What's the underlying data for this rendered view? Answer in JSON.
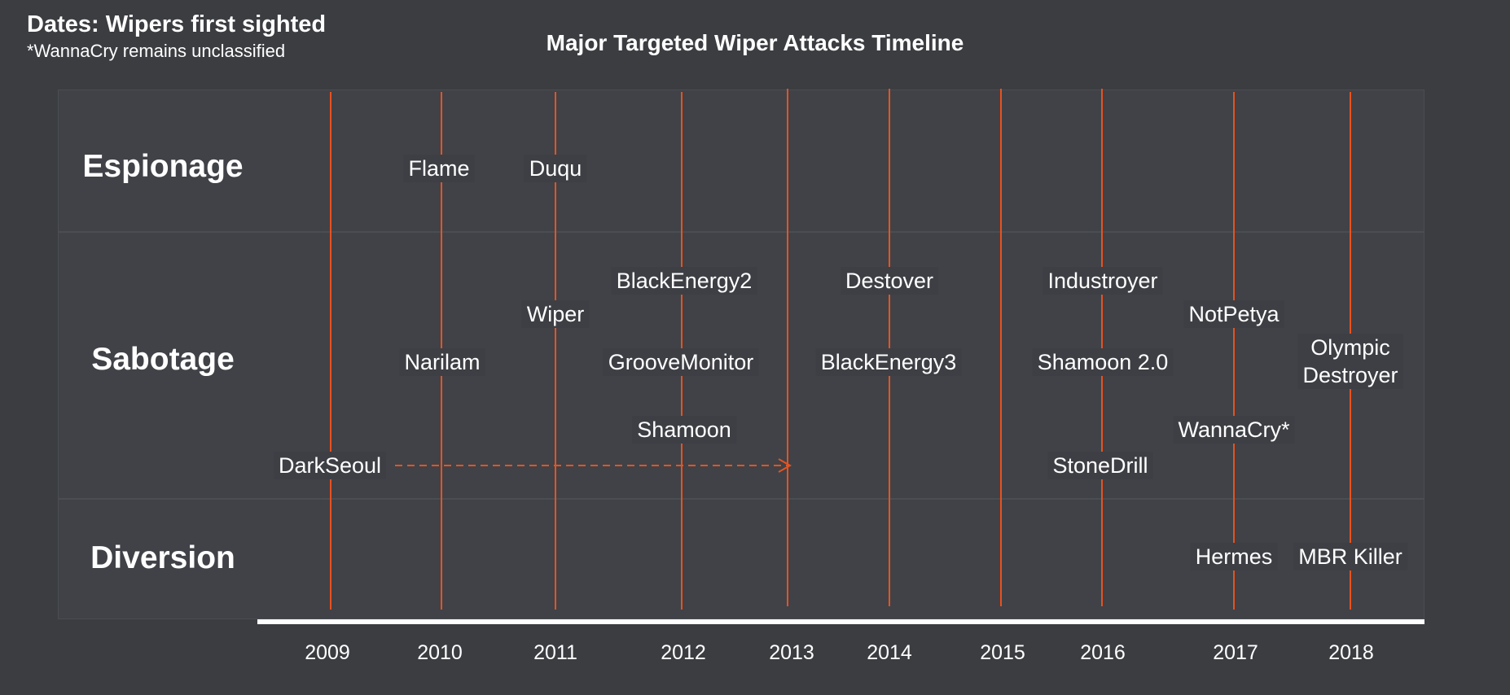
{
  "header": {
    "title": "Dates: Wipers first sighted",
    "note": "*WannaCry remains unclassified",
    "chart_title": "Major Targeted Wiper Attacks Timeline"
  },
  "rows": {
    "espionage": "Espionage",
    "sabotage": "Sabotage",
    "diversion": "Diversion"
  },
  "years": [
    "2009",
    "2010",
    "2011",
    "2012",
    "2013",
    "2014",
    "2015",
    "2016",
    "2017",
    "2018"
  ],
  "events": {
    "flame": "Flame",
    "duqu": "Duqu",
    "blackenergy2": "BlackEnergy2",
    "destover": "Destover",
    "industroyer": "Industroyer",
    "wiper": "Wiper",
    "notpetya": "NotPetya",
    "narilam": "Narilam",
    "groovemonitor": "GrooveMonitor",
    "blackenergy3": "BlackEnergy3",
    "shamoon2": "Shamoon 2.0",
    "olympic1": "Olympic",
    "olympic2": "Destroyer",
    "shamoon": "Shamoon",
    "wannacry": "WannaCry*",
    "darkseoul": "DarkSeoul",
    "stonedrill": "StoneDrill",
    "hermes": "Hermes",
    "mbrkiller": "MBR Killer"
  },
  "colors": {
    "background": "#3b3d41",
    "band": "#404247",
    "accent": "#e8521f",
    "text": "#ffffff"
  }
}
